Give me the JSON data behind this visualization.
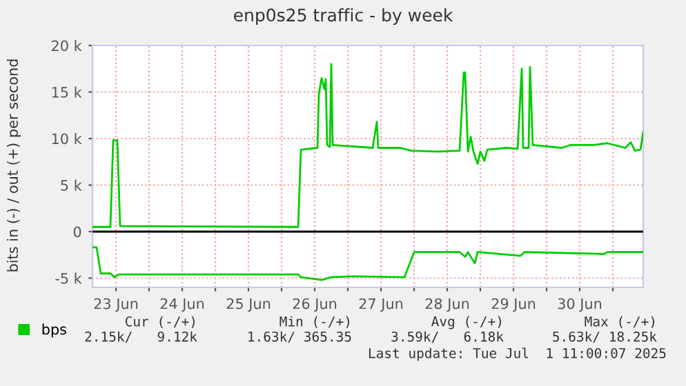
{
  "chart_data": {
    "type": "line",
    "title": "enp0s25 traffic - by week",
    "ylabel": "bits in (-) / out (+) per second",
    "xlim": [
      "2025-06-23T03:30",
      "2025-07-01T11:00"
    ],
    "xticks": [
      {
        "value": "2025-06-23T12:00",
        "label": "23 Jun"
      },
      {
        "value": "2025-06-24T00:00",
        "label": null
      },
      {
        "value": "2025-06-24T12:00",
        "label": "24 Jun"
      },
      {
        "value": "2025-06-25T00:00",
        "label": null
      },
      {
        "value": "2025-06-25T12:00",
        "label": "25 Jun"
      },
      {
        "value": "2025-06-26T00:00",
        "label": null
      },
      {
        "value": "2025-06-26T12:00",
        "label": "26 Jun"
      },
      {
        "value": "2025-06-27T00:00",
        "label": null
      },
      {
        "value": "2025-06-27T12:00",
        "label": "27 Jun"
      },
      {
        "value": "2025-06-28T00:00",
        "label": null
      },
      {
        "value": "2025-06-28T12:00",
        "label": "28 Jun"
      },
      {
        "value": "2025-06-29T00:00",
        "label": null
      },
      {
        "value": "2025-06-29T12:00",
        "label": "29 Jun"
      },
      {
        "value": "2025-06-30T00:00",
        "label": null
      },
      {
        "value": "2025-06-30T12:00",
        "label": "30 Jun"
      },
      {
        "value": "2025-07-01T00:00",
        "label": null
      }
    ],
    "ylim": [
      -6000,
      20000
    ],
    "yticks": [
      {
        "value": -5000,
        "label": "-5 k"
      },
      0,
      {
        "value": 5000,
        "label": "5 k"
      },
      {
        "value": 10000,
        "label": "10 k"
      },
      {
        "value": 15000,
        "label": "15 k"
      },
      {
        "value": 20000,
        "label": "20 k"
      }
    ],
    "grid": true,
    "legend": "bottom left",
    "marker": "none",
    "line_style": "solid",
    "ref_lines": [
      {
        "axis": "y",
        "value": 0,
        "color": "#000000"
      }
    ],
    "series": [
      {
        "name": "bps",
        "color": "#00cc00",
        "x": [
          "2025-06-23T03:30",
          "2025-06-23T10:00",
          "2025-06-23T11:00",
          "2025-06-23T12:30",
          "2025-06-23T13:30",
          "2025-06-26T06:00",
          "2025-06-26T07:00",
          "2025-06-26T13:00",
          "2025-06-26T13:30",
          "2025-06-26T14:30",
          "2025-06-26T15:30",
          "2025-06-26T16:00",
          "2025-06-26T16:30",
          "2025-06-26T17:30",
          "2025-06-26T18:00",
          "2025-06-26T18:30",
          "2025-06-27T09:00",
          "2025-06-27T10:30",
          "2025-06-27T11:00",
          "2025-06-27T19:00",
          "2025-06-27T23:00",
          "2025-06-28T08:30",
          "2025-06-28T16:30",
          "2025-06-28T18:00",
          "2025-06-28T18:30",
          "2025-06-28T19:30",
          "2025-06-28T20:30",
          "2025-06-28T21:30",
          "2025-06-28T23:00",
          "2025-06-29T00:00",
          "2025-06-29T01:30",
          "2025-06-29T02:30",
          "2025-06-29T09:30",
          "2025-06-29T13:30",
          "2025-06-29T15:00",
          "2025-06-29T15:30",
          "2025-06-29T17:30",
          "2025-06-29T18:00",
          "2025-06-29T19:00",
          "2025-06-30T05:30",
          "2025-06-30T08:30",
          "2025-06-30T17:00",
          "2025-06-30T22:00",
          "2025-07-01T04:30",
          "2025-07-01T06:30",
          "2025-07-01T08:00",
          "2025-07-01T10:00",
          "2025-07-01T11:00"
        ],
        "values": [
          500,
          500,
          9800,
          9800,
          600,
          500,
          8800,
          9000,
          14800,
          16500,
          15300,
          16400,
          9300,
          9100,
          18000,
          9300,
          9000,
          11800,
          9000,
          9000,
          8700,
          8600,
          8700,
          17100,
          17100,
          8600,
          10200,
          8600,
          7300,
          8600,
          7600,
          8800,
          9000,
          8900,
          17500,
          9000,
          9000,
          17700,
          9300,
          9000,
          9300,
          9300,
          9500,
          9000,
          9600,
          8700,
          8800,
          10700
        ]
      },
      {
        "color": "#00cc00",
        "x": [
          "2025-06-23T03:30",
          "2025-06-23T05:00",
          "2025-06-23T06:30",
          "2025-06-23T10:00",
          "2025-06-23T11:30",
          "2025-06-23T13:00",
          "2025-06-26T06:00",
          "2025-06-26T07:00",
          "2025-06-26T14:30",
          "2025-06-26T18:00",
          "2025-06-27T02:30",
          "2025-06-27T20:30",
          "2025-06-28T00:00",
          "2025-06-28T16:30",
          "2025-06-28T18:30",
          "2025-06-28T19:30",
          "2025-06-28T22:00",
          "2025-06-28T23:00",
          "2025-06-29T14:30",
          "2025-06-29T16:00",
          "2025-06-30T21:00",
          "2025-06-30T22:00",
          "2025-07-01T11:00"
        ],
        "values": [
          -1700,
          -1700,
          -4500,
          -4500,
          -4900,
          -4600,
          -4600,
          -4900,
          -5200,
          -4900,
          -4800,
          -4900,
          -2200,
          -2200,
          -2700,
          -2200,
          -3400,
          -2200,
          -2600,
          -2200,
          -2400,
          -2200,
          -2200
        ]
      }
    ],
    "annotations": [
      "Cur (-/+)",
      "2.15k/   9.12k",
      "Min (-/+)",
      "1.63k/ 365.35",
      "Avg (-/+)",
      "3.59k/   6.18k",
      "Max (-/+)",
      "5.63k/ 18.25k",
      "Last update: Tue Jul  1 11:00:07 2025"
    ]
  }
}
